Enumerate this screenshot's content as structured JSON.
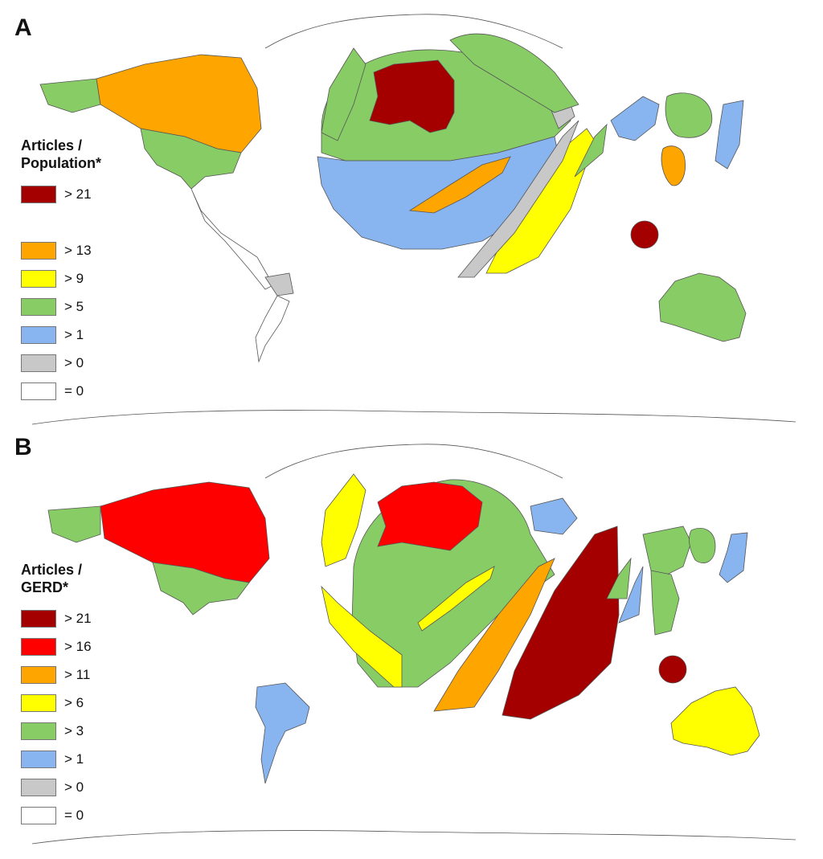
{
  "panels": [
    {
      "letter": "A",
      "legend_title_line1": "Articles /",
      "legend_title_line2": "Population*",
      "legend": [
        {
          "label": "> 21",
          "color": "#a50000"
        },
        {
          "label": "> 13",
          "color": "#ffa500"
        },
        {
          "label": "> 9",
          "color": "#ffff00"
        },
        {
          "label": "> 5",
          "color": "#88cc66"
        },
        {
          "label": "> 1",
          "color": "#88b4f0"
        },
        {
          "label": "> 0",
          "color": "#c8c8c8"
        },
        {
          "label": "= 0",
          "color": "#ffffff"
        }
      ]
    },
    {
      "letter": "B",
      "legend_title_line1": "Articles /",
      "legend_title_line2": "GERD*",
      "legend": [
        {
          "label": "> 21",
          "color": "#a50000"
        },
        {
          "label": "> 16",
          "color": "#ff0000"
        },
        {
          "label": "> 11",
          "color": "#ffa500"
        },
        {
          "label": "> 6",
          "color": "#ffff00"
        },
        {
          "label": "> 3",
          "color": "#88cc66"
        },
        {
          "label": "> 1",
          "color": "#88b4f0"
        },
        {
          "label": "> 0",
          "color": "#c8c8c8"
        },
        {
          "label": "= 0",
          "color": "#ffffff"
        }
      ]
    }
  ]
}
